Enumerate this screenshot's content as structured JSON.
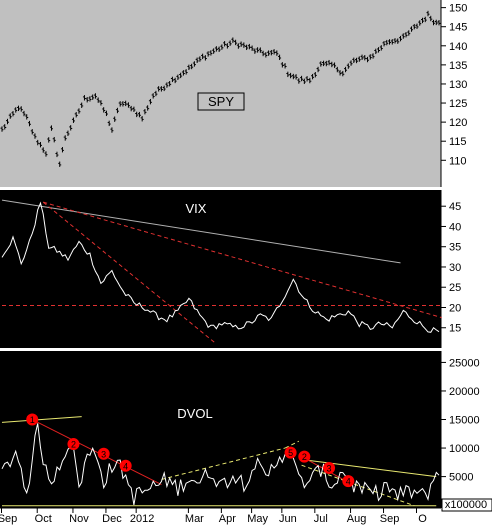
{
  "chart_data": [
    {
      "type": "line",
      "series": [
        {
          "name": "SPY"
        }
      ],
      "label": "SPY",
      "ylim": [
        103,
        152
      ],
      "yticks": [
        110,
        115,
        120,
        125,
        130,
        135,
        140,
        145,
        150
      ],
      "colors": {
        "background": "#c0c0c0",
        "line": "#000000"
      },
      "anchors": [
        [
          0,
          118
        ],
        [
          6,
          124
        ],
        [
          9,
          121
        ],
        [
          12,
          116
        ],
        [
          16,
          112
        ],
        [
          18,
          118
        ],
        [
          21,
          109
        ],
        [
          23,
          116
        ],
        [
          26,
          120
        ],
        [
          30,
          126
        ],
        [
          34,
          127
        ],
        [
          38,
          122
        ],
        [
          40,
          118
        ],
        [
          43,
          125
        ],
        [
          47,
          124
        ],
        [
          51,
          121
        ],
        [
          55,
          127
        ],
        [
          60,
          130
        ],
        [
          64,
          132
        ],
        [
          68,
          134
        ],
        [
          73,
          137
        ],
        [
          78,
          139
        ],
        [
          84,
          141
        ],
        [
          88,
          140
        ],
        [
          95,
          138
        ],
        [
          100,
          138
        ],
        [
          104,
          133
        ],
        [
          108,
          131
        ],
        [
          112,
          131
        ],
        [
          116,
          135
        ],
        [
          120,
          135
        ],
        [
          124,
          133
        ],
        [
          128,
          136
        ],
        [
          134,
          137
        ],
        [
          140,
          141
        ],
        [
          146,
          142
        ],
        [
          152,
          146
        ],
        [
          155,
          148
        ],
        [
          158,
          146
        ]
      ]
    },
    {
      "type": "line",
      "series": [
        {
          "name": "VIX"
        }
      ],
      "label": "VIX",
      "ylim": [
        10,
        49
      ],
      "yticks": [
        15,
        20,
        25,
        30,
        35,
        40,
        45
      ],
      "colors": {
        "background": "#000000",
        "line": "#ffffff",
        "trend_dash": "#e03030",
        "trend_solid": "#b0b0b0"
      },
      "anchors": [
        [
          0,
          33
        ],
        [
          4,
          37
        ],
        [
          7,
          31
        ],
        [
          10,
          36
        ],
        [
          14,
          46
        ],
        [
          17,
          35
        ],
        [
          20,
          34
        ],
        [
          24,
          32
        ],
        [
          28,
          36
        ],
        [
          32,
          33
        ],
        [
          36,
          26
        ],
        [
          40,
          29
        ],
        [
          44,
          24
        ],
        [
          48,
          21
        ],
        [
          52,
          20
        ],
        [
          56,
          18
        ],
        [
          60,
          17
        ],
        [
          64,
          19
        ],
        [
          68,
          22
        ],
        [
          72,
          18
        ],
        [
          76,
          15
        ],
        [
          80,
          16
        ],
        [
          85,
          15
        ],
        [
          90,
          16
        ],
        [
          94,
          18
        ],
        [
          98,
          17
        ],
        [
          102,
          22
        ],
        [
          106,
          27
        ],
        [
          110,
          22
        ],
        [
          114,
          19
        ],
        [
          118,
          17
        ],
        [
          122,
          18
        ],
        [
          126,
          19
        ],
        [
          130,
          16
        ],
        [
          134,
          15
        ],
        [
          138,
          16
        ],
        [
          142,
          15
        ],
        [
          146,
          19
        ],
        [
          150,
          17
        ],
        [
          154,
          15
        ],
        [
          158,
          14
        ]
      ],
      "trendlines": [
        {
          "style": "solid",
          "from": [
            0,
            46.5
          ],
          "to": [
            145,
            31
          ]
        },
        {
          "style": "dashed",
          "from": [
            15,
            46
          ],
          "to": [
            78,
            11
          ]
        },
        {
          "style": "dashed",
          "from": [
            15,
            46
          ],
          "to": [
            160,
            17.5
          ]
        },
        {
          "style": "dashed",
          "from": [
            0,
            20.5
          ],
          "to": [
            160,
            20.5
          ]
        }
      ]
    },
    {
      "type": "line",
      "series": [
        {
          "name": "DVOL"
        }
      ],
      "label": "DVOL",
      "ylim": [
        -500,
        27000
      ],
      "yticks": [
        5000,
        10000,
        15000,
        20000,
        25000
      ],
      "tick_labels": [
        "5000",
        "10000",
        "15000",
        "20000",
        "25000"
      ],
      "ylabel": "x100000",
      "colors": {
        "background": "#000000",
        "line": "#ffffff",
        "trend_dash": "#e8e870",
        "trend_solid_red": "#e02020",
        "marker": "#ff0000"
      },
      "anchors": [
        [
          0,
          5000
        ],
        [
          5,
          9000
        ],
        [
          9,
          2000
        ],
        [
          13,
          13000
        ],
        [
          15,
          8000
        ],
        [
          17,
          3000
        ],
        [
          21,
          7000
        ],
        [
          25,
          11000
        ],
        [
          28,
          3000
        ],
        [
          31,
          8000
        ],
        [
          34,
          9000
        ],
        [
          37,
          4000
        ],
        [
          41,
          7000
        ],
        [
          44,
          5500
        ],
        [
          48,
          1000
        ],
        [
          52,
          2000
        ],
        [
          56,
          3000
        ],
        [
          60,
          4000
        ],
        [
          64,
          2500
        ],
        [
          68,
          4500
        ],
        [
          72,
          3500
        ],
        [
          76,
          5500
        ],
        [
          80,
          3000
        ],
        [
          84,
          5000
        ],
        [
          88,
          3500
        ],
        [
          92,
          7000
        ],
        [
          96,
          4000
        ],
        [
          100,
          7500
        ],
        [
          104,
          9500
        ],
        [
          108,
          4000
        ],
        [
          112,
          3500
        ],
        [
          116,
          6000
        ],
        [
          120,
          3000
        ],
        [
          124,
          5500
        ],
        [
          128,
          3000
        ],
        [
          132,
          2000
        ],
        [
          136,
          1500
        ],
        [
          140,
          3000
        ],
        [
          144,
          1000
        ],
        [
          148,
          2000
        ],
        [
          152,
          1500
        ],
        [
          154,
          800
        ],
        [
          156,
          3000
        ],
        [
          158,
          5200
        ]
      ],
      "markers": [
        {
          "label": "1",
          "at": [
            11,
            15000
          ]
        },
        {
          "label": "2",
          "at": [
            26,
            10700
          ]
        },
        {
          "label": "3",
          "at": [
            37,
            9000
          ]
        },
        {
          "label": "4",
          "at": [
            45,
            6900
          ]
        },
        {
          "label": "5",
          "at": [
            105,
            9200
          ]
        },
        {
          "label": "2",
          "at": [
            110,
            8500
          ]
        },
        {
          "label": "3",
          "at": [
            119,
            6500
          ]
        },
        {
          "label": "4",
          "at": [
            126,
            4200
          ]
        }
      ],
      "trendlines": [
        {
          "style": "solid",
          "color": "#e8e870",
          "from": [
            0,
            14500
          ],
          "to": [
            29,
            15500
          ]
        },
        {
          "style": "solid",
          "color": "#e02020",
          "from": [
            11,
            15000
          ],
          "to": [
            58,
            3600
          ]
        },
        {
          "style": "dashed",
          "color": "#e8e870",
          "from": [
            58,
            4500
          ],
          "to": [
            103,
            10000
          ]
        },
        {
          "style": "dashed",
          "color": "#e8e870",
          "from": [
            103,
            10000
          ],
          "to": [
            108,
            11200
          ]
        },
        {
          "style": "solid",
          "color": "#e8e870",
          "from": [
            109,
            8000
          ],
          "to": [
            158,
            5000
          ]
        },
        {
          "style": "solid",
          "color": "#e02020",
          "from": [
            109,
            8500
          ],
          "to": [
            126,
            4000
          ]
        },
        {
          "style": "solid",
          "color": "#e8e870",
          "from": [
            0,
            -100
          ],
          "to": [
            158,
            -100
          ]
        },
        {
          "style": "dashed",
          "color": "#e8e870",
          "from": [
            109,
            7000
          ],
          "to": [
            150,
            -100
          ]
        }
      ]
    }
  ],
  "x_axis": {
    "points": 160,
    "labels": [
      {
        "text": "Sep",
        "at": 2
      },
      {
        "text": "Oct",
        "at": 15
      },
      {
        "text": "Nov",
        "at": 28
      },
      {
        "text": "Dec",
        "at": 40
      },
      {
        "text": "2012",
        "at": 51
      },
      {
        "text": "Mar",
        "at": 70
      },
      {
        "text": "Apr",
        "at": 82
      },
      {
        "text": "May",
        "at": 93
      },
      {
        "text": "Jun",
        "at": 104
      },
      {
        "text": "Jul",
        "at": 116
      },
      {
        "text": "Aug",
        "at": 129
      },
      {
        "text": "Sep",
        "at": 141
      },
      {
        "text": "O",
        "at": 153
      }
    ]
  }
}
